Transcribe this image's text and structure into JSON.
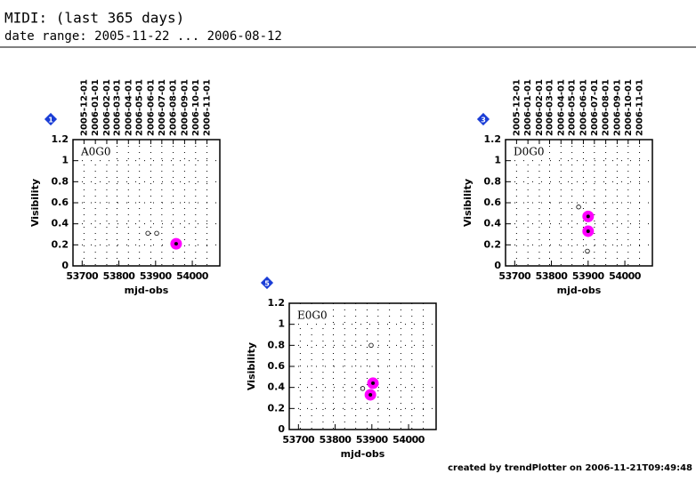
{
  "title": "MIDI: (last 365 days)",
  "subtitle": "date range: 2005-11-22 ... 2006-08-12",
  "footer": "created by trendPlotter on 2006-11-21T09:49:48",
  "chart_data": [
    {
      "type": "scatter",
      "badge": "1",
      "label": "A0G0",
      "x_label": "mjd-obs",
      "y_label": "Visibility",
      "xlim": [
        53675,
        54075
      ],
      "ylim": [
        0,
        1.2
      ],
      "xticks": [
        53700,
        53800,
        53900,
        54000
      ],
      "yticks": [
        0,
        0.2,
        0.4,
        0.6,
        0.8,
        1,
        1.2
      ],
      "x2ticks": [
        {
          "value": 53705,
          "label": "2005-12-01"
        },
        {
          "value": 53736,
          "label": "2006-01-01"
        },
        {
          "value": 53767,
          "label": "2006-02-01"
        },
        {
          "value": 53795,
          "label": "2006-03-01"
        },
        {
          "value": 53826,
          "label": "2006-04-01"
        },
        {
          "value": 53856,
          "label": "2006-05-01"
        },
        {
          "value": 53887,
          "label": "2006-06-01"
        },
        {
          "value": 53917,
          "label": "2006-07-01"
        },
        {
          "value": 53948,
          "label": "2006-08-01"
        },
        {
          "value": 53979,
          "label": "2006-09-01"
        },
        {
          "value": 54009,
          "label": "2006-10-01"
        },
        {
          "value": 54040,
          "label": "2006-11-01"
        }
      ],
      "grid": true,
      "series": [
        {
          "color": "#000000",
          "x": [
            53879,
            53903
          ],
          "values": [
            0.31,
            0.31
          ]
        },
        {
          "color": "#ff00ff",
          "x": [
            53956
          ],
          "values": [
            0.21
          ]
        }
      ]
    },
    {
      "type": "scatter",
      "badge": "3",
      "label": "D0G0",
      "x_label": "mjd-obs",
      "y_label": "Visibility",
      "xlim": [
        53675,
        54075
      ],
      "ylim": [
        0,
        1.2
      ],
      "xticks": [
        53700,
        53800,
        53900,
        54000
      ],
      "yticks": [
        0,
        0.2,
        0.4,
        0.6,
        0.8,
        1,
        1.2
      ],
      "x2ticks": [
        {
          "value": 53705,
          "label": "2005-12-01"
        },
        {
          "value": 53736,
          "label": "2006-01-01"
        },
        {
          "value": 53767,
          "label": "2006-02-01"
        },
        {
          "value": 53795,
          "label": "2006-03-01"
        },
        {
          "value": 53826,
          "label": "2006-04-01"
        },
        {
          "value": 53856,
          "label": "2006-05-01"
        },
        {
          "value": 53887,
          "label": "2006-06-01"
        },
        {
          "value": 53917,
          "label": "2006-07-01"
        },
        {
          "value": 53948,
          "label": "2006-08-01"
        },
        {
          "value": 53979,
          "label": "2006-09-01"
        },
        {
          "value": 54009,
          "label": "2006-10-01"
        },
        {
          "value": 54040,
          "label": "2006-11-01"
        }
      ],
      "grid": true,
      "series": [
        {
          "color": "#000000",
          "x": [
            53874,
            53898
          ],
          "values": [
            0.56,
            0.14
          ]
        },
        {
          "color": "#ff00ff",
          "x": [
            53900,
            53900
          ],
          "values": [
            0.47,
            0.33
          ]
        }
      ]
    },
    {
      "type": "scatter",
      "badge": "5",
      "label": "E0G0",
      "x_label": "mjd-obs",
      "y_label": "Visibility",
      "xlim": [
        53675,
        54075
      ],
      "ylim": [
        0,
        1.2
      ],
      "xticks": [
        53700,
        53800,
        53900,
        54000
      ],
      "yticks": [
        0,
        0.2,
        0.4,
        0.6,
        0.8,
        1,
        1.2
      ],
      "grid": true,
      "grid_x": [
        53705,
        53736,
        53767,
        53795,
        53826,
        53856,
        53887,
        53917,
        53948,
        53979,
        54009,
        54040
      ],
      "series": [
        {
          "color": "#000000",
          "x": [
            53898,
            53875
          ],
          "values": [
            0.8,
            0.39
          ]
        },
        {
          "color": "#ff00ff",
          "x": [
            53903,
            53896
          ],
          "values": [
            0.44,
            0.33
          ]
        }
      ]
    }
  ]
}
